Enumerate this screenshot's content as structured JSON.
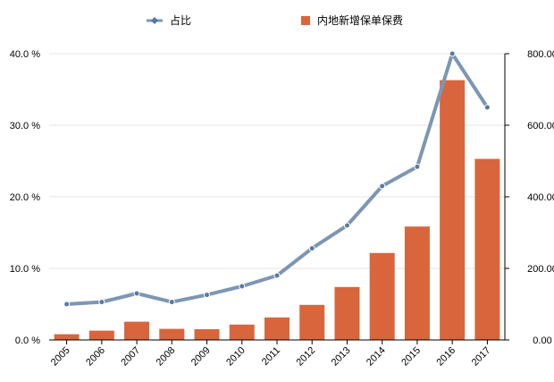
{
  "chart_data": {
    "type": "bar",
    "categories": [
      "2005",
      "2006",
      "2007",
      "2008",
      "2009",
      "2010",
      "2011",
      "2012",
      "2013",
      "2014",
      "2015",
      "2016",
      "2017"
    ],
    "series": [
      {
        "name": "内地新增保单保费",
        "type": "bar",
        "axis": "right",
        "color": "#d9653d",
        "values": [
          16,
          26,
          51,
          31,
          30,
          43,
          63,
          98,
          148,
          243,
          317,
          726,
          506
        ]
      },
      {
        "name": "占比",
        "type": "line",
        "axis": "left",
        "color": "#7d96b4",
        "values": [
          5.0,
          5.3,
          6.5,
          5.3,
          6.3,
          7.5,
          9.0,
          12.8,
          16.0,
          21.5,
          24.2,
          40.0,
          32.5
        ]
      }
    ],
    "y_left": {
      "ylim": [
        0,
        40
      ],
      "ticks": [
        "0.0 %",
        "10.0 %",
        "20.0 %",
        "30.0 %",
        "40.0 %"
      ]
    },
    "y_right": {
      "ylim": [
        0,
        800
      ],
      "ticks": [
        "0.00",
        "200.00",
        "400.00",
        "600.00",
        "800.00"
      ]
    },
    "grid": true,
    "legend_position": "top-center",
    "title": "",
    "xlabel": "",
    "ylabel": ""
  },
  "legend": {
    "line_label": "占比",
    "bar_label": "内地新增保单保费"
  }
}
